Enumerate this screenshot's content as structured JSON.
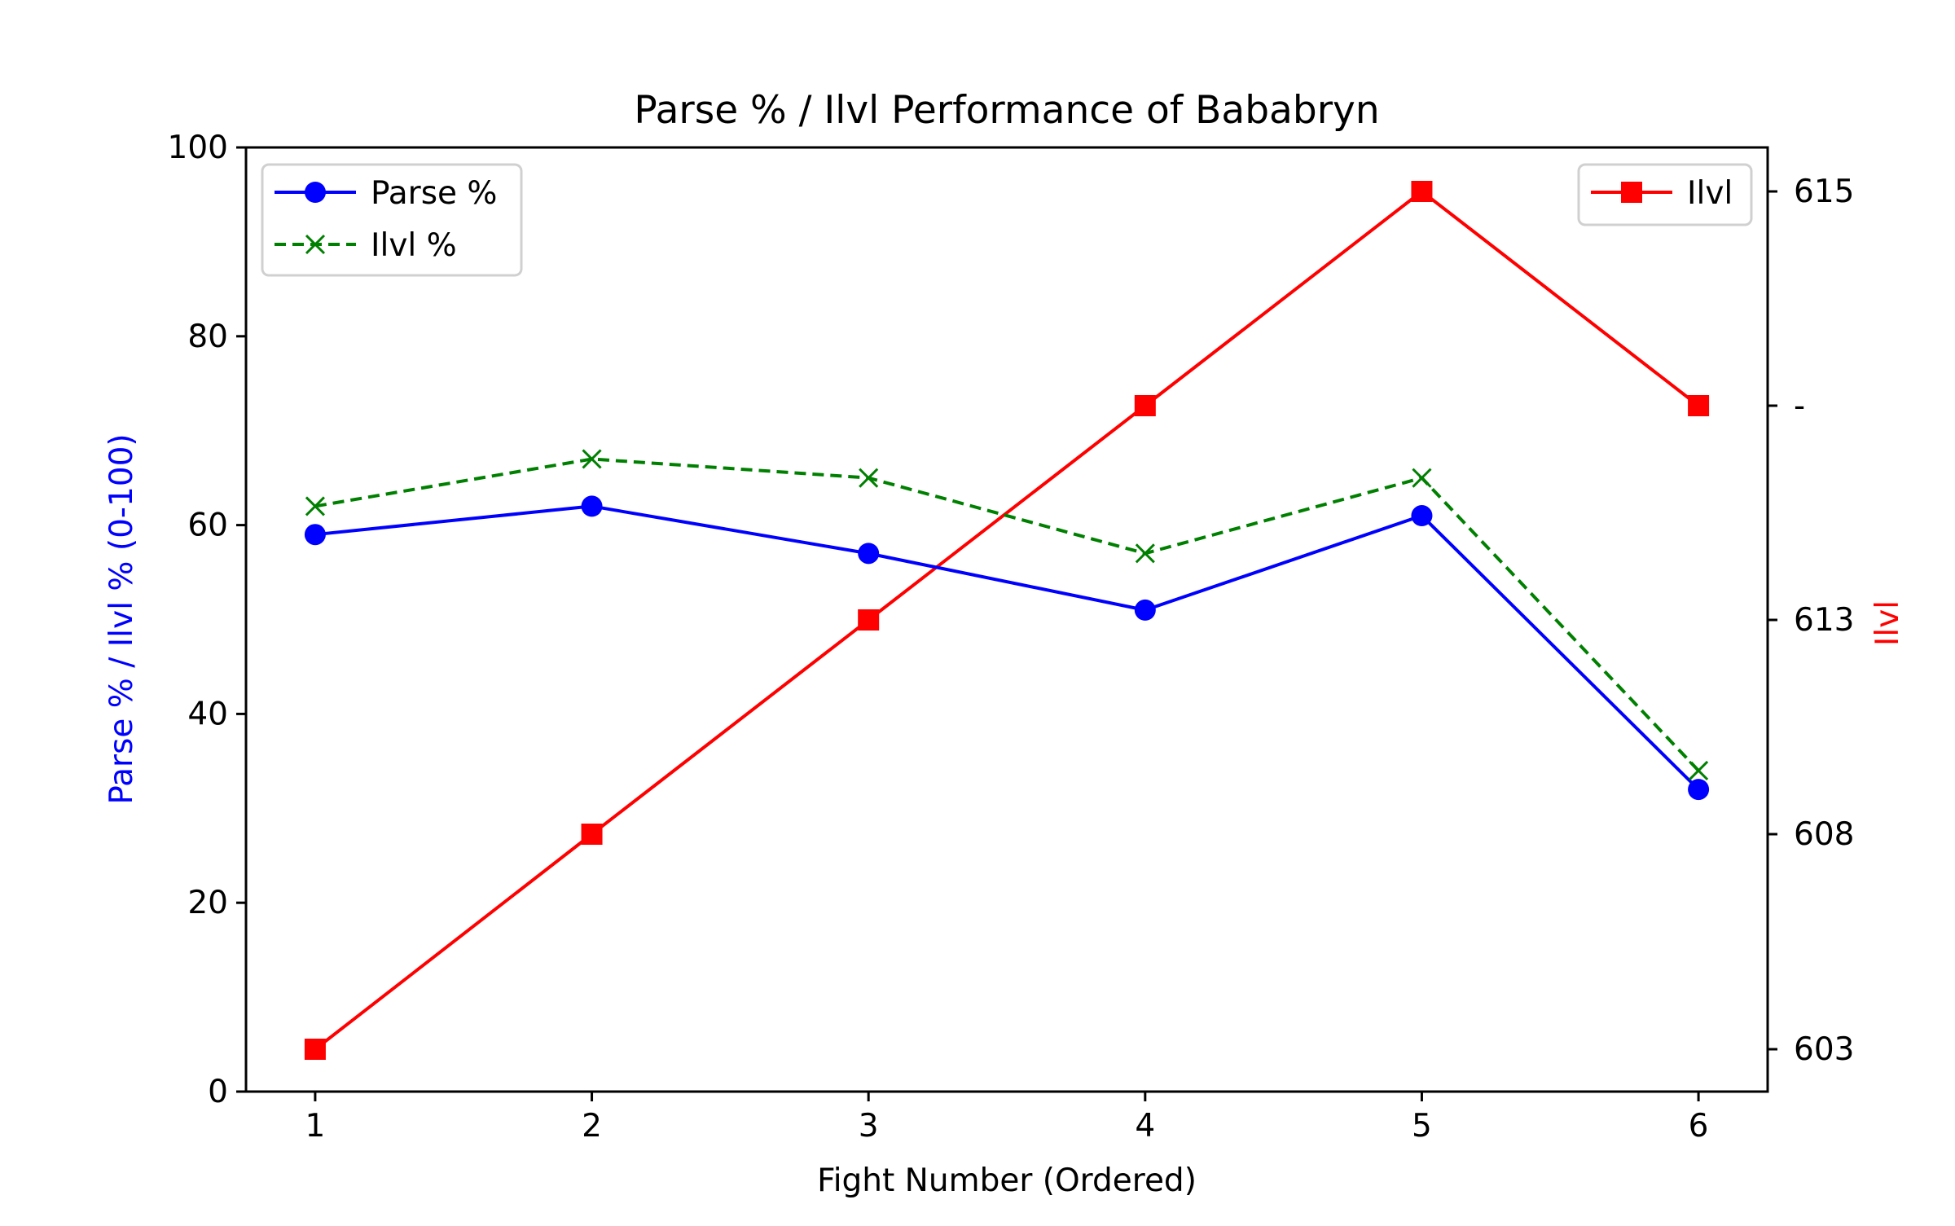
{
  "chart_data": {
    "type": "line",
    "title": "Parse % / Ilvl Performance of Bababryn",
    "xlabel": "Fight Number (Ordered)",
    "ylabel_left": "Parse % / Ilvl % (0-100)",
    "ylabel_right": "Ilvl",
    "x": [
      1,
      2,
      3,
      4,
      5,
      6
    ],
    "x_ticks": [
      "1",
      "2",
      "3",
      "4",
      "5",
      "6"
    ],
    "ylim_left": [
      0,
      100
    ],
    "y_ticks_left": [
      "0",
      "20",
      "40",
      "60",
      "80",
      "100"
    ],
    "y_ticks_right": [
      "603",
      "608",
      "613",
      "-",
      "615"
    ],
    "grid": false,
    "series": [
      {
        "name": "Parse %",
        "axis": "left",
        "style": "solid",
        "marker": "circle",
        "color": "#0000ff",
        "values": [
          59,
          62,
          57,
          51,
          61,
          32
        ]
      },
      {
        "name": "Ilvl %",
        "axis": "left",
        "style": "dashed",
        "marker": "x",
        "color": "#008000",
        "values": [
          62,
          67,
          65,
          57,
          65,
          34
        ]
      },
      {
        "name": "Ilvl",
        "axis": "right",
        "style": "solid",
        "marker": "square",
        "color": "#ff0000",
        "values": [
          603,
          608,
          613,
          "-",
          615,
          "-"
        ]
      }
    ],
    "legend_left_position": "top-left",
    "legend_right_position": "top-right",
    "colors": {
      "left_label": "#0000ff",
      "right_label": "#ff0000",
      "axis": "#000000"
    }
  }
}
